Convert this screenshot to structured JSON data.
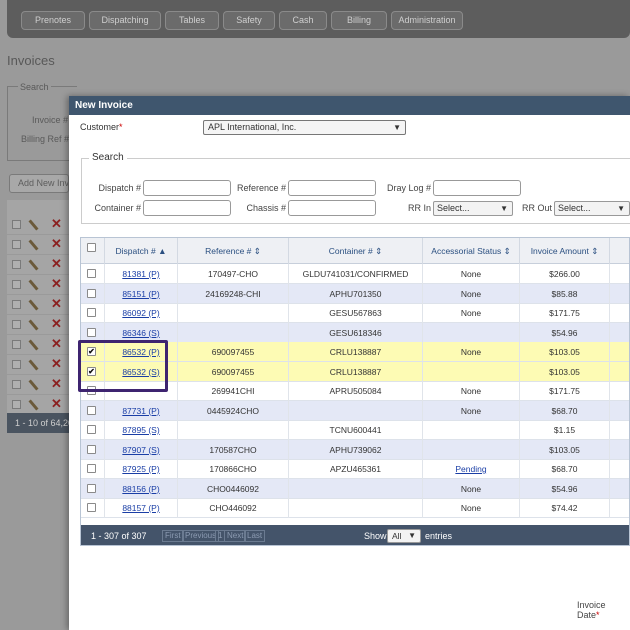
{
  "nav": {
    "tabs": [
      "Prenotes",
      "Dispatching",
      "Tables",
      "Safety",
      "Cash",
      "Billing",
      "Administration"
    ]
  },
  "background": {
    "page_title": "Invoices",
    "search_legend": "Search",
    "invoice_label": "Invoice #",
    "billing_ref_label": "Billing Ref #",
    "add_button": "Add New Invo",
    "footer_text": "1 - 10 of 64,20"
  },
  "modal": {
    "title": "New Invoice",
    "customer_label": "Customer",
    "customer_value": "APL International, Inc.",
    "search": {
      "legend": "Search",
      "dispatch_label": "Dispatch #",
      "container_label": "Container #",
      "reference_label": "Reference #",
      "chassis_label": "Chassis #",
      "dray_log_label": "Dray Log #",
      "rr_in_label": "RR In",
      "rr_in_value": "Select...",
      "rr_out_label": "RR Out",
      "rr_out_value": "Select..."
    },
    "grid": {
      "headers": [
        "Dispatch #",
        "Reference #",
        "Container #",
        "Accessorial Status",
        "Invoice Amount"
      ],
      "rows": [
        {
          "checked": false,
          "dispatch": "81381 (P)",
          "reference": "170497-CHO",
          "container": "GLDU741031/CONFIRMED",
          "status": "None",
          "amount": "$266.00"
        },
        {
          "checked": false,
          "dispatch": "85151 (P)",
          "reference": "24169248-CHI",
          "container": "APHU701350",
          "status": "None",
          "amount": "$85.88"
        },
        {
          "checked": false,
          "dispatch": "86092 (P)",
          "reference": "",
          "container": "GESU567863",
          "status": "None",
          "amount": "$171.75"
        },
        {
          "checked": false,
          "dispatch": "86346 (S)",
          "reference": "",
          "container": "GESU618346",
          "status": "",
          "amount": "$54.96"
        },
        {
          "checked": true,
          "dispatch": "86532 (P)",
          "reference": "690097455",
          "container": "CRLU138887",
          "status": "None",
          "amount": "$103.05"
        },
        {
          "checked": true,
          "dispatch": "86532 (S)",
          "reference": "690097455",
          "container": "CRLU138887",
          "status": "",
          "amount": "$103.05"
        },
        {
          "checked": false,
          "dispatch": "",
          "reference": "269941CHI",
          "container": "APRU505084",
          "status": "None",
          "amount": "$171.75"
        },
        {
          "checked": false,
          "dispatch": "87731 (P)",
          "reference": "0445924CHO",
          "container": "",
          "status": "None",
          "amount": "$68.70"
        },
        {
          "checked": false,
          "dispatch": "87895 (S)",
          "reference": "",
          "container": "TCNU600441",
          "status": "",
          "amount": "$1.15"
        },
        {
          "checked": false,
          "dispatch": "87907 (S)",
          "reference": "170587CHO",
          "container": "APHU739062",
          "status": "",
          "amount": "$103.05"
        },
        {
          "checked": false,
          "dispatch": "87925 (P)",
          "reference": "170866CHO",
          "container": "APZU465361",
          "status": "Pending",
          "amount": "$68.70"
        },
        {
          "checked": false,
          "dispatch": "88156 (P)",
          "reference": "CHO0446092",
          "container": "",
          "status": "None",
          "amount": "$54.96"
        },
        {
          "checked": false,
          "dispatch": "88157 (P)",
          "reference": "CHO446092",
          "container": "",
          "status": "None",
          "amount": "$74.42"
        }
      ]
    },
    "pager": {
      "info": "1 - 307 of 307",
      "first": "First",
      "previous": "Previous",
      "page": "1",
      "next": "Next",
      "last": "Last",
      "show_label": "Show",
      "show_value": "All",
      "entries_label": "entries"
    },
    "invoice_date_label": "Invoice Date"
  },
  "colors": {
    "header_bar": "#3f566e",
    "selected_row": "#fdfbb4",
    "alt_row": "#e4e8f6",
    "annotation_box": "#3e2470",
    "link": "#1a3ea6",
    "delete_icon": "#8b2020"
  }
}
